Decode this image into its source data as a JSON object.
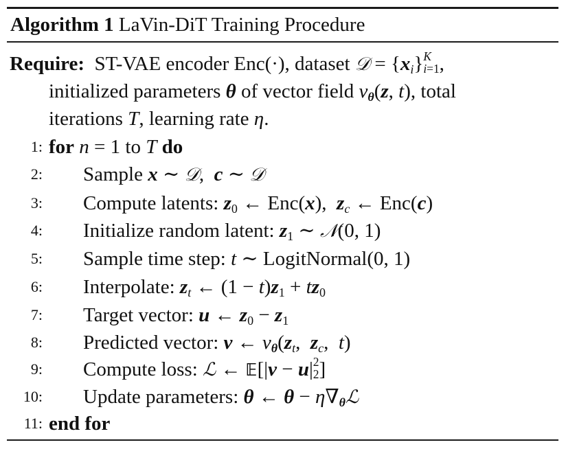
{
  "algorithm": {
    "label": "Algorithm 1",
    "title": "LaVin-DiT Training Procedure"
  },
  "require": {
    "keyword": "Require:",
    "line1_text_a": "ST-VAE encoder Enc(·), dataset",
    "line1_math": "𝒟 = {xᵢ}ᵢ₌₁ᴷ,",
    "line2": "initialized parameters θ of vector field vθ(z, t), total",
    "line3": "iterations T, learning rate η."
  },
  "steps": [
    {
      "num": "1:",
      "text": "for n = 1 to T do"
    },
    {
      "num": "2:",
      "text": "Sample x ∼ 𝒟, c ∼ 𝒟"
    },
    {
      "num": "3:",
      "text": "Compute latents: z₀ ← Enc(x), z꜀ ← Enc(c)"
    },
    {
      "num": "4:",
      "text": "Initialize random latent: z₁ ∼ 𝒩(0, 1)"
    },
    {
      "num": "5:",
      "text": "Sample time step: t ∼ LogitNormal(0, 1)"
    },
    {
      "num": "6:",
      "text": "Interpolate: zₜ ← (1 − t)z₁ + tz₀"
    },
    {
      "num": "7:",
      "text": "Target vector: u ← z₀ − z₁"
    },
    {
      "num": "8:",
      "text": "Predicted vector: v ← vθ(zₜ, z꜀, t)"
    },
    {
      "num": "9:",
      "text": "Compute loss: ℒ ← 𝔼[|v − u|²₂]"
    },
    {
      "num": "10:",
      "text": "Update parameters: θ ← θ − η∇θℒ"
    },
    {
      "num": "11:",
      "text": "end for"
    }
  ]
}
